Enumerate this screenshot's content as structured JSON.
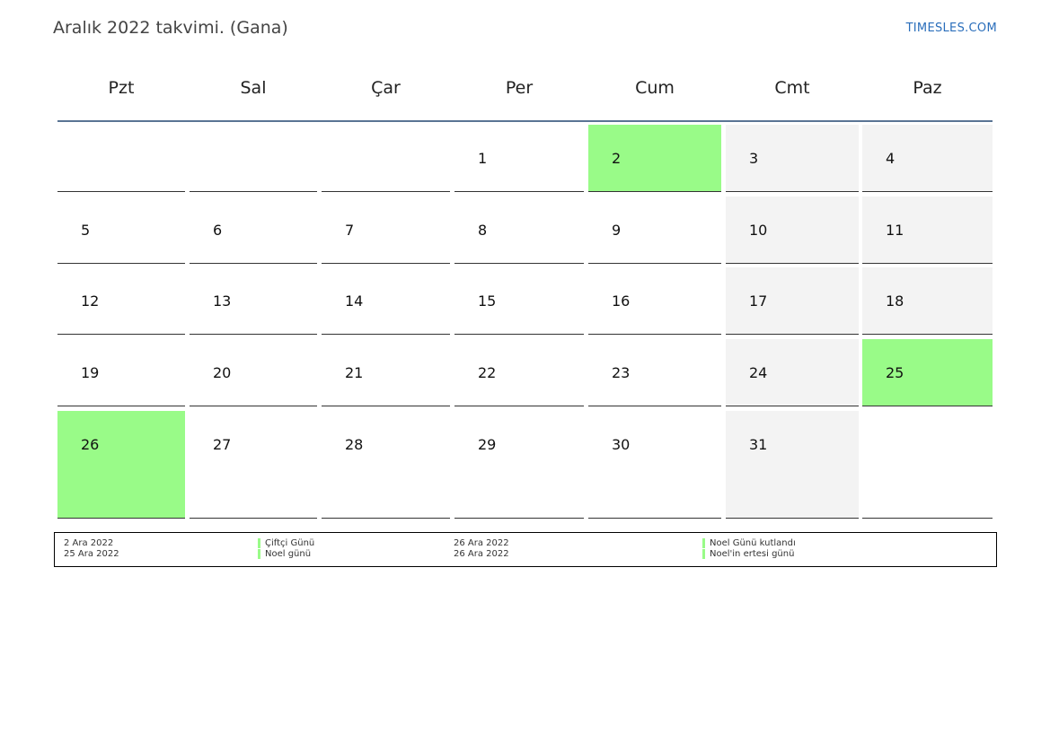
{
  "header": {
    "title": "Aralık 2022 takvimi. (Gana)",
    "site": "TIMESLES.COM"
  },
  "weekdays": [
    "Pzt",
    "Sal",
    "Çar",
    "Per",
    "Cum",
    "Cmt",
    "Paz"
  ],
  "weeks": [
    [
      null,
      null,
      null,
      "1",
      "2",
      "3",
      "4"
    ],
    [
      "5",
      "6",
      "7",
      "8",
      "9",
      "10",
      "11"
    ],
    [
      "12",
      "13",
      "14",
      "15",
      "16",
      "17",
      "18"
    ],
    [
      "19",
      "20",
      "21",
      "22",
      "23",
      "24",
      "25"
    ],
    [
      "26",
      "27",
      "28",
      "29",
      "30",
      "31",
      null
    ]
  ],
  "holidays": [
    "2",
    "25",
    "26"
  ],
  "colors": {
    "holiday": "#99fb88",
    "weekend": "#f3f3f3",
    "header_rule": "#5a7494",
    "link": "#2a6ebb"
  },
  "legend": [
    {
      "date": "2 Ara 2022",
      "name": "Çiftçi Günü"
    },
    {
      "date": "25 Ara 2022",
      "name": "Noel günü"
    },
    {
      "date": "26 Ara 2022",
      "name": "Noel Günü kutlandı"
    },
    {
      "date": "26 Ara 2022",
      "name": "Noel'in ertesi günü"
    }
  ]
}
